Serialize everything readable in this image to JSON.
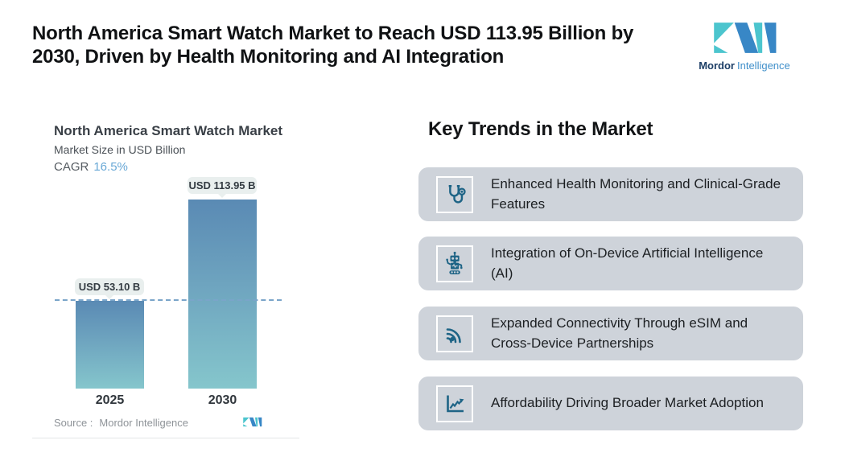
{
  "header": {
    "title": "North America Smart Watch Market to Reach USD 113.95 Billion by 2030, Driven by Health Monitoring and AI Integration"
  },
  "brand": {
    "name_bold": "Mordor",
    "name_light": "Intelligence",
    "colors": {
      "teal": "#4cc5ce",
      "blue": "#3887c6"
    }
  },
  "chart_data": {
    "type": "bar",
    "title": "North America Smart Watch Market",
    "subtitle": "Market Size in USD Billion",
    "cagr_label": "CAGR",
    "cagr_value": "16.5%",
    "categories": [
      "2025",
      "2030"
    ],
    "values": [
      53.1,
      113.95
    ],
    "bar_labels": [
      "USD 53.10 B",
      "USD 113.95 B"
    ],
    "ylabel": "Market Size in USD Billion",
    "dashed_reference_line_at": 53.1,
    "legend": "none",
    "grid": "off",
    "bar_gradient": [
      "#5a8ab4",
      "#85c6cc"
    ],
    "dash_color": "#7aa5c9",
    "source_label": "Source :",
    "source_value": "Mordor Intelligence"
  },
  "trends": {
    "heading": "Key Trends in the Market",
    "card_color": "#ced3da",
    "icon_color": "#1e6486",
    "items": [
      {
        "icon": "stethoscope-icon",
        "label": "Enhanced Health Monitoring and Clinical-Grade Features"
      },
      {
        "icon": "robot-icon",
        "label": "Integration of On-Device Artificial Intelligence (AI)"
      },
      {
        "icon": "wifi-icon",
        "label": "Expanded Connectivity Through eSIM and Cross-Device Partnerships"
      },
      {
        "icon": "chart-icon",
        "label": "Affordability Driving Broader Market Adoption"
      }
    ]
  }
}
